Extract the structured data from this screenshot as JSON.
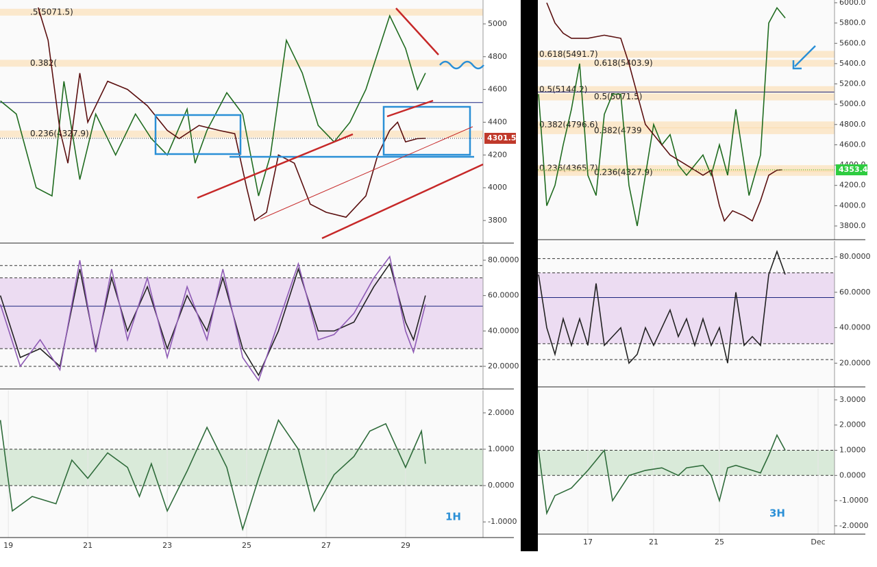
{
  "chart_data": [
    {
      "type": "line",
      "ylim": [
        3662,
        5146
      ],
      "yticks": [
        3800,
        4000,
        4200,
        4400,
        4600,
        4800,
        5000
      ],
      "xlim": [
        18.79,
        30.95
      ],
      "levels": [
        {
          "value": 5071.5,
          "label": ".5(5071.5)"
        },
        {
          "value": 4760,
          "label": "0.382("
        },
        {
          "value": 4327.9,
          "label": "0.236(4327.9)"
        }
      ],
      "hlines": [
        4520
      ],
      "last_label": "4301.5",
      "tag_color": "#c0392b",
      "series": [
        {
          "color": "#1f6b1f",
          "x": [
            18.8,
            19.2,
            19.7,
            20.1,
            20.4,
            20.8,
            21.2,
            21.7,
            22.2,
            22.6,
            23.0,
            23.5,
            23.7,
            24.0,
            24.5,
            24.9,
            25.3,
            25.6,
            26.0,
            26.4,
            26.8,
            27.2,
            27.6,
            28.0,
            28.6,
            29.0,
            29.3,
            29.5
          ],
          "values": [
            4530,
            4450,
            4000,
            3950,
            4650,
            4050,
            4450,
            4200,
            4450,
            4300,
            4200,
            4480,
            4150,
            4350,
            4580,
            4450,
            3950,
            4200,
            4900,
            4700,
            4380,
            4280,
            4400,
            4600,
            5050,
            4850,
            4600,
            4700
          ]
        },
        {
          "color": "#5a0f0f",
          "x": [
            19.75,
            20.0,
            20.3,
            20.5,
            20.8,
            21.0,
            21.5,
            22.0,
            22.5,
            23.0,
            23.3,
            23.8,
            24.3,
            24.7,
            25.0,
            25.2,
            25.5,
            25.8,
            26.2,
            26.6,
            27.0,
            27.5,
            28.0,
            28.3,
            28.6,
            28.8,
            29.0,
            29.3,
            29.5
          ],
          "values": [
            5100,
            4900,
            4350,
            4150,
            4700,
            4400,
            4650,
            4600,
            4500,
            4350,
            4300,
            4380,
            4350,
            4330,
            4000,
            3800,
            3850,
            4200,
            4150,
            3900,
            3850,
            3820,
            3950,
            4200,
            4350,
            4400,
            4280,
            4300,
            4301.5
          ]
        }
      ]
    },
    {
      "type": "line",
      "ylim": [
        7.2,
        88.9
      ],
      "yticks": [
        {
          "value": 20,
          "label": "20.0000"
        },
        {
          "value": 40,
          "label": "40.0000"
        },
        {
          "value": 60,
          "label": "60.0000"
        },
        {
          "value": 80,
          "label": "80.0000"
        }
      ],
      "xlim": [
        18.79,
        30.95
      ],
      "band": [
        30,
        70
      ],
      "levels": [
        20,
        30,
        70,
        77
      ],
      "hlines": [
        54
      ],
      "series": [
        {
          "color": "#222",
          "x": [
            18.8,
            19.3,
            19.8,
            20.3,
            20.8,
            21.2,
            21.6,
            22.0,
            22.5,
            23.0,
            23.5,
            24.0,
            24.4,
            24.9,
            25.3,
            25.8,
            26.3,
            26.8,
            27.2,
            27.7,
            28.2,
            28.6,
            29.0,
            29.2,
            29.5
          ],
          "values": [
            60,
            25,
            30,
            20,
            75,
            30,
            70,
            40,
            65,
            30,
            60,
            40,
            70,
            30,
            15,
            40,
            75,
            40,
            40,
            45,
            65,
            78,
            45,
            35,
            60
          ]
        },
        {
          "color": "#8e5bb5",
          "x": [
            18.8,
            19.3,
            19.8,
            20.3,
            20.8,
            21.2,
            21.6,
            22.0,
            22.5,
            23.0,
            23.5,
            24.0,
            24.4,
            24.9,
            25.3,
            25.8,
            26.3,
            26.8,
            27.2,
            27.7,
            28.2,
            28.6,
            29.0,
            29.2,
            29.5
          ],
          "values": [
            55,
            20,
            35,
            18,
            80,
            28,
            75,
            35,
            70,
            25,
            65,
            35,
            75,
            25,
            12,
            45,
            78,
            35,
            38,
            50,
            70,
            82,
            40,
            28,
            55
          ]
        }
      ]
    },
    {
      "type": "line",
      "ylim": [
        -1.43,
        2.62
      ],
      "yticks": [
        {
          "value": -1,
          "label": "-1.0000"
        },
        {
          "value": 0,
          "label": "0.0000"
        },
        {
          "value": 1,
          "label": "1.0000"
        },
        {
          "value": 2,
          "label": "2.0000"
        }
      ],
      "xlim": [
        18.79,
        30.95
      ],
      "xticks": [
        19,
        21,
        23,
        25,
        27,
        29
      ],
      "band": [
        0,
        1
      ],
      "levels": [
        0,
        1
      ],
      "timeframe": "1H",
      "series": [
        {
          "color": "#2e6b3a",
          "x": [
            18.8,
            19.1,
            19.6,
            20.2,
            20.6,
            21.0,
            21.5,
            22.0,
            22.3,
            22.6,
            23.0,
            23.5,
            24.0,
            24.5,
            24.9,
            25.3,
            25.8,
            26.3,
            26.7,
            27.2,
            27.7,
            28.1,
            28.5,
            29.0,
            29.4,
            29.5
          ],
          "values": [
            1.8,
            -0.7,
            -0.3,
            -0.5,
            0.7,
            0.2,
            0.9,
            0.5,
            -0.3,
            0.6,
            -0.7,
            0.4,
            1.6,
            0.5,
            -1.2,
            0.2,
            1.8,
            1.0,
            -0.7,
            0.3,
            0.8,
            1.5,
            1.7,
            0.5,
            1.5,
            0.6
          ]
        }
      ]
    },
    {
      "type": "line",
      "ylim": [
        3665,
        6027
      ],
      "yticks": [
        {
          "value": 3800,
          "label": "3800.0"
        },
        {
          "value": 4000,
          "label": "4000.0"
        },
        {
          "value": 4200,
          "label": "4200.0"
        },
        {
          "value": 4400,
          "label": "4400.0"
        },
        {
          "value": 4600,
          "label": "4600.0"
        },
        {
          "value": 4800,
          "label": "4800.0"
        },
        {
          "value": 5000,
          "label": "5000.0"
        },
        {
          "value": 5200,
          "label": "5200.0"
        },
        {
          "value": 5400,
          "label": "5400.0"
        },
        {
          "value": 5600,
          "label": "5600.0"
        },
        {
          "value": 5800,
          "label": "5800.0"
        },
        {
          "value": 6000,
          "label": "6000.0"
        }
      ],
      "xlim": [
        13.96,
        32
      ],
      "levels": [
        {
          "value": 5491.7,
          "label": "0.618(5491.7)"
        },
        {
          "value": 5403.9,
          "label": "0.618(5403.9)"
        },
        {
          "value": 5144.2,
          "label": "0.5(5144.2)"
        },
        {
          "value": 5071.5,
          "label": "0.5(5071.5)"
        },
        {
          "value": 4796.6,
          "label": "0.382(4796.6)"
        },
        {
          "value": 4739,
          "label": "0.382(4739"
        },
        {
          "value": 4365.7,
          "label": "0.236(4365.7)"
        },
        {
          "value": 4327.9,
          "label": "0.236(4327.9)"
        }
      ],
      "hlines": [
        5120
      ],
      "last_label": "4353.4",
      "tag_color": "#2ecc40",
      "series": [
        {
          "color": "#1f6b1f",
          "x": [
            14,
            14.5,
            15,
            15.5,
            16,
            16.5,
            17,
            17.5,
            18,
            18.5,
            19,
            19.5,
            20,
            20.5,
            21,
            21.5,
            22,
            22.5,
            23,
            24,
            24.5,
            25,
            25.5,
            26,
            26.8,
            27.5,
            28,
            28.5,
            29
          ],
          "values": [
            5100,
            4000,
            4200,
            4600,
            4950,
            5400,
            4300,
            4100,
            4900,
            5100,
            5100,
            4200,
            3800,
            4300,
            4800,
            4600,
            4700,
            4400,
            4300,
            4500,
            4300,
            4600,
            4300,
            4950,
            4100,
            4500,
            5800,
            5950,
            5850
          ]
        },
        {
          "color": "#5a0f0f",
          "x": [
            14.5,
            15,
            15.5,
            16,
            17,
            18,
            19,
            19.5,
            20,
            20.5,
            21,
            21.5,
            22,
            23,
            23.5,
            24,
            24.5,
            25,
            25.3,
            25.8,
            26.5,
            27,
            27.5,
            28,
            28.5,
            28.8
          ],
          "values": [
            6000,
            5800,
            5700,
            5650,
            5650,
            5680,
            5650,
            5400,
            5100,
            4800,
            4700,
            4600,
            4500,
            4400,
            4350,
            4300,
            4350,
            4000,
            3850,
            3950,
            3900,
            3850,
            4050,
            4300,
            4350,
            4353.4
          ]
        }
      ]
    },
    {
      "type": "line",
      "ylim": [
        6.6,
        88.9
      ],
      "yticks": [
        {
          "value": 20,
          "label": "20.0000"
        },
        {
          "value": 40,
          "label": "40.0000"
        },
        {
          "value": 60,
          "label": "60.0000"
        },
        {
          "value": 80,
          "label": "80.0000"
        }
      ],
      "xlim": [
        13.96,
        32
      ],
      "band": [
        31,
        71
      ],
      "levels": [
        22,
        31,
        71,
        79
      ],
      "hlines": [
        57
      ],
      "series": [
        {
          "color": "#222",
          "x": [
            14,
            14.5,
            15,
            15.5,
            16,
            16.5,
            17,
            17.5,
            18,
            19,
            19.5,
            20,
            20.5,
            21,
            22,
            22.5,
            23,
            23.5,
            24,
            24.5,
            25,
            25.5,
            26,
            26.5,
            27,
            27.5,
            28,
            28.5,
            29
          ],
          "values": [
            70,
            40,
            25,
            45,
            30,
            45,
            30,
            65,
            30,
            40,
            20,
            25,
            40,
            30,
            50,
            35,
            45,
            30,
            45,
            30,
            40,
            20,
            60,
            30,
            35,
            30,
            70,
            83,
            70
          ]
        }
      ]
    },
    {
      "type": "line",
      "ylim": [
        -2.33,
        3.46
      ],
      "yticks": [
        {
          "value": -2,
          "label": "-2.0000"
        },
        {
          "value": -1,
          "label": "-1.0000"
        },
        {
          "value": 0,
          "label": "0.0000"
        },
        {
          "value": 1,
          "label": "1.0000"
        },
        {
          "value": 2,
          "label": "2.0000"
        },
        {
          "value": 3,
          "label": "3.0000"
        }
      ],
      "xlim": [
        13.96,
        32
      ],
      "xticks": [
        17,
        21,
        25,
        {
          "value": 31,
          "label": "Dec"
        }
      ],
      "band": [
        0,
        1
      ],
      "levels": [
        0,
        1
      ],
      "timeframe": "3H",
      "series": [
        {
          "color": "#2e6b3a",
          "x": [
            14,
            14.5,
            15,
            16,
            17,
            17.5,
            18,
            18.5,
            19,
            19.5,
            20.5,
            21.5,
            22.5,
            23,
            24,
            24.5,
            25,
            25.5,
            26,
            27,
            27.5,
            28,
            28.5,
            29
          ],
          "values": [
            1.0,
            -1.5,
            -0.8,
            -0.5,
            0.2,
            0.6,
            1.0,
            -1.0,
            -0.5,
            0.0,
            0.2,
            0.3,
            0.0,
            0.3,
            0.4,
            0.0,
            -1.0,
            0.3,
            0.4,
            0.2,
            0.1,
            0.8,
            1.6,
            1.0
          ]
        }
      ]
    }
  ]
}
